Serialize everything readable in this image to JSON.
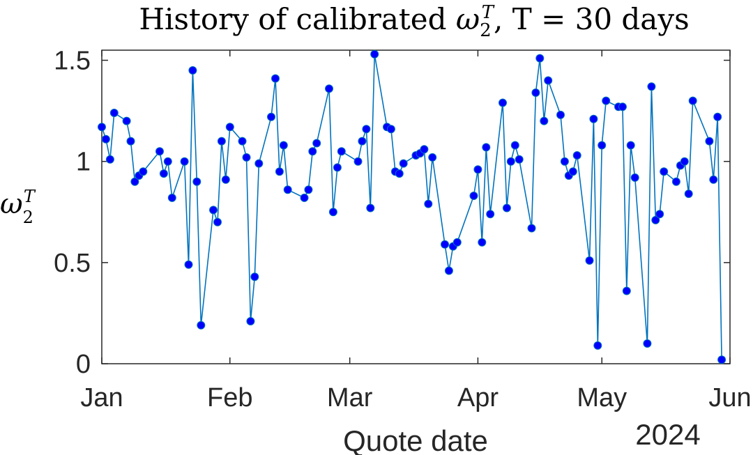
{
  "chart_data": {
    "type": "line",
    "title_prefix": "History of calibrated ",
    "title_symbol": "ω",
    "title_subscript": "2",
    "title_superscript": "T",
    "title_suffix": ", T = 30 days",
    "xlabel": "Quote date",
    "ylabel_symbol": "ω",
    "ylabel_subscript": "2",
    "ylabel_superscript": "T",
    "year_label": "2024",
    "xlim": [
      "2024-01-01",
      "2024-06-01"
    ],
    "ylim": [
      0,
      1.55
    ],
    "x_ticks": [
      {
        "date": "2024-01-01",
        "label": "Jan"
      },
      {
        "date": "2024-02-01",
        "label": "Feb"
      },
      {
        "date": "2024-03-01",
        "label": "Mar"
      },
      {
        "date": "2024-04-01",
        "label": "Apr"
      },
      {
        "date": "2024-05-01",
        "label": "May"
      },
      {
        "date": "2024-06-01",
        "label": "Jun"
      }
    ],
    "y_ticks": [
      {
        "value": 0,
        "label": "0"
      },
      {
        "value": 0.5,
        "label": "0.5"
      },
      {
        "value": 1,
        "label": "1"
      },
      {
        "value": 1.5,
        "label": "1.5"
      }
    ],
    "grid": false,
    "line_color": "#0072BD",
    "marker_color": "#0000FF",
    "series": [
      {
        "x": [
          "2024-01-01",
          "2024-01-02",
          "2024-01-03",
          "2024-01-04",
          "2024-01-07",
          "2024-01-08",
          "2024-01-09",
          "2024-01-10",
          "2024-01-11",
          "2024-01-15",
          "2024-01-16",
          "2024-01-17",
          "2024-01-18",
          "2024-01-21",
          "2024-01-22",
          "2024-01-23",
          "2024-01-24",
          "2024-01-25",
          "2024-01-28",
          "2024-01-29",
          "2024-01-30",
          "2024-01-31",
          "2024-02-01",
          "2024-02-04",
          "2024-02-05",
          "2024-02-06",
          "2024-02-07",
          "2024-02-08",
          "2024-02-11",
          "2024-02-12",
          "2024-02-13",
          "2024-02-14",
          "2024-02-15",
          "2024-02-19",
          "2024-02-20",
          "2024-02-21",
          "2024-02-22",
          "2024-02-25",
          "2024-02-26",
          "2024-02-27",
          "2024-02-28",
          "2024-03-03",
          "2024-03-04",
          "2024-03-05",
          "2024-03-06",
          "2024-03-07",
          "2024-03-10",
          "2024-03-11",
          "2024-03-12",
          "2024-03-13",
          "2024-03-14",
          "2024-03-17",
          "2024-03-18",
          "2024-03-19",
          "2024-03-20",
          "2024-03-21",
          "2024-03-24",
          "2024-03-25",
          "2024-03-26",
          "2024-03-27",
          "2024-03-31",
          "2024-04-01",
          "2024-04-02",
          "2024-04-03",
          "2024-04-04",
          "2024-04-07",
          "2024-04-08",
          "2024-04-09",
          "2024-04-10",
          "2024-04-11",
          "2024-04-14",
          "2024-04-15",
          "2024-04-16",
          "2024-04-17",
          "2024-04-18",
          "2024-04-21",
          "2024-04-22",
          "2024-04-23",
          "2024-04-24",
          "2024-04-25",
          "2024-04-28",
          "2024-04-29",
          "2024-04-30",
          "2024-05-01",
          "2024-05-02",
          "2024-05-05",
          "2024-05-06",
          "2024-05-07",
          "2024-05-08",
          "2024-05-09",
          "2024-05-12",
          "2024-05-13",
          "2024-05-14",
          "2024-05-15",
          "2024-05-16",
          "2024-05-19",
          "2024-05-20",
          "2024-05-21",
          "2024-05-22",
          "2024-05-23",
          "2024-05-27",
          "2024-05-28",
          "2024-05-29",
          "2024-05-30"
        ],
        "y": [
          1.17,
          1.11,
          1.01,
          1.24,
          1.2,
          1.1,
          0.9,
          0.93,
          0.95,
          1.05,
          0.94,
          1.0,
          0.82,
          1.0,
          0.49,
          1.45,
          0.9,
          0.19,
          0.76,
          0.7,
          1.1,
          0.91,
          1.17,
          1.1,
          1.02,
          0.21,
          0.43,
          0.99,
          1.22,
          1.41,
          0.95,
          1.08,
          0.86,
          0.82,
          0.86,
          1.05,
          1.09,
          1.36,
          0.75,
          0.97,
          1.05,
          1.0,
          1.1,
          1.16,
          0.77,
          1.53,
          1.17,
          1.16,
          0.95,
          0.94,
          0.99,
          1.03,
          1.04,
          1.06,
          0.79,
          1.02,
          0.59,
          0.46,
          0.58,
          0.6,
          0.83,
          0.96,
          0.6,
          1.07,
          0.74,
          1.29,
          0.77,
          1.0,
          1.08,
          1.01,
          0.67,
          1.34,
          1.51,
          1.2,
          1.4,
          1.23,
          1.0,
          0.93,
          0.95,
          1.03,
          0.51,
          1.21,
          0.09,
          1.08,
          1.3,
          1.27,
          1.27,
          0.36,
          1.08,
          0.92,
          0.1,
          1.37,
          0.71,
          0.74,
          0.95,
          0.9,
          0.98,
          1.0,
          0.84,
          1.3,
          1.1,
          0.91,
          1.22,
          0.02
        ]
      }
    ]
  }
}
